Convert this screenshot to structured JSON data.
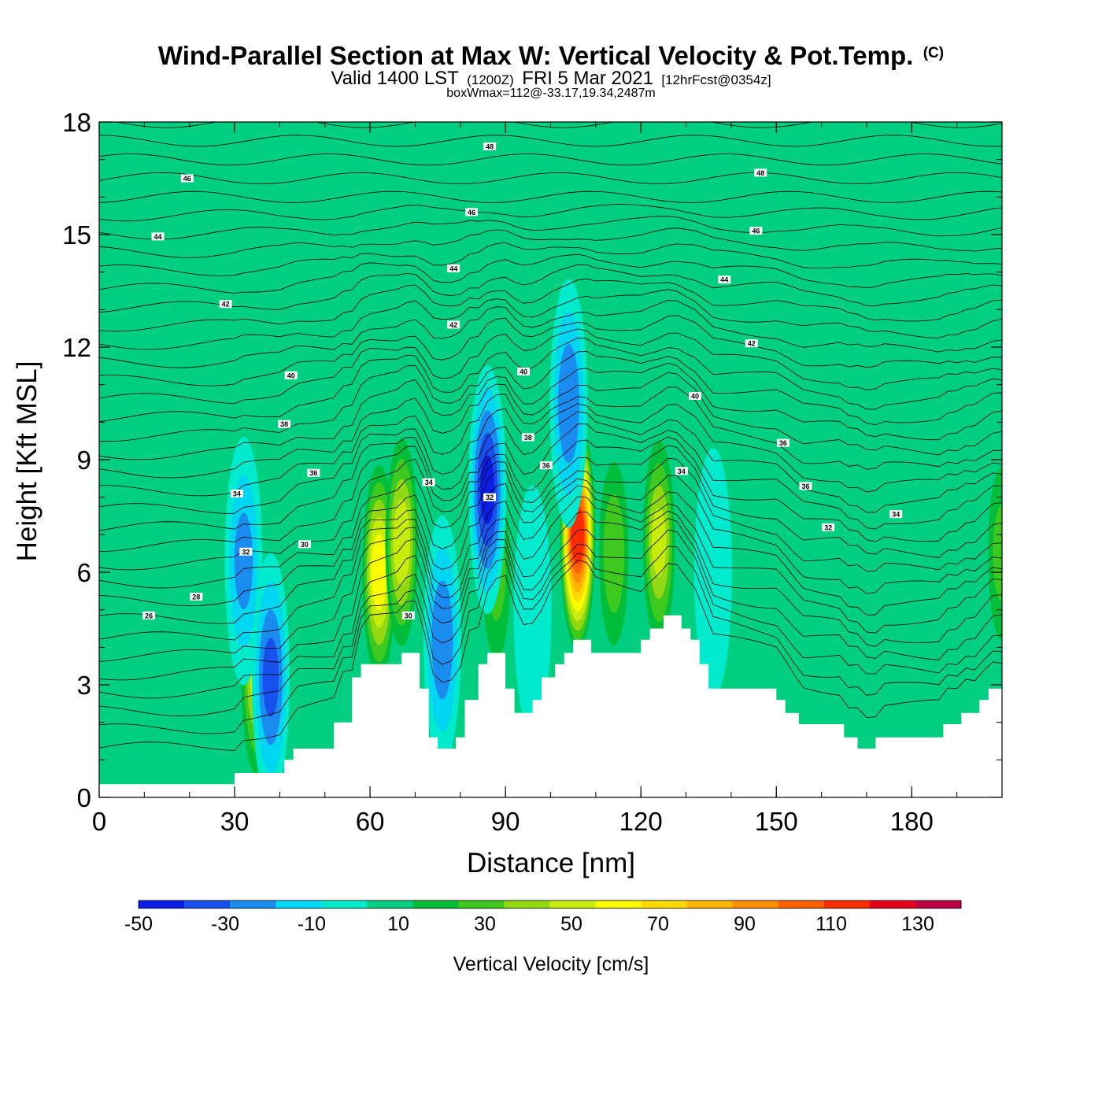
{
  "chart_data": {
    "type": "heatmap",
    "title": "Wind-Parallel Section at Max W: Vertical Velocity & Pot.Temp.",
    "title_mark": "(C)",
    "subtitle_parts": [
      "Valid 1400 LST",
      "(1200Z)",
      "FRI 5 Mar 2021",
      "[12hrFcst@0354z]"
    ],
    "subtitle2": "boxWmax=112@-33.17,19.34,2487m",
    "xlabel": "Distance [nm]",
    "ylabel": "Height [Kft MSL]",
    "xlim": [
      0,
      200
    ],
    "ylim": [
      0,
      18
    ],
    "x_ticks": [
      "0",
      "30",
      "60",
      "90",
      "120",
      "150",
      "180"
    ],
    "x_tick_values": [
      0,
      30,
      60,
      90,
      120,
      150,
      180
    ],
    "y_ticks": [
      "0",
      "3",
      "6",
      "9",
      "12",
      "15",
      "18"
    ],
    "y_tick_values": [
      0,
      3,
      6,
      9,
      12,
      15,
      18
    ],
    "colorbar": {
      "label": "Vertical Velocity [cm/s]",
      "min": -50,
      "max": 140,
      "step": 10,
      "tick_labels": [
        "-50",
        "-30",
        "-10",
        "10",
        "30",
        "50",
        "70",
        "90",
        "110",
        "130"
      ],
      "tick_values": [
        -50,
        -30,
        -10,
        10,
        30,
        50,
        70,
        90,
        110,
        130
      ],
      "colors": [
        "#0c1ee6",
        "#1750ec",
        "#1a8cf0",
        "#00d6f2",
        "#00eacd",
        "#00cf80",
        "#00bd3a",
        "#3ec91e",
        "#92d813",
        "#c8ec0a",
        "#fcfc00",
        "#fcd900",
        "#fcb500",
        "#fc8d00",
        "#fc6000",
        "#fc2a00",
        "#e6001b",
        "#bb0044"
      ]
    },
    "background_value": 8,
    "terrain_profile": [
      [
        0,
        0.35
      ],
      [
        30,
        0.35
      ],
      [
        30,
        0.65
      ],
      [
        41,
        0.65
      ],
      [
        41,
        1.0
      ],
      [
        43,
        1.0
      ],
      [
        43,
        1.3
      ],
      [
        52,
        1.3
      ],
      [
        52,
        2.0
      ],
      [
        56,
        2.0
      ],
      [
        56,
        3.2
      ],
      [
        58,
        3.2
      ],
      [
        58,
        3.55
      ],
      [
        67,
        3.55
      ],
      [
        67,
        3.85
      ],
      [
        71,
        3.85
      ],
      [
        71,
        2.9
      ],
      [
        73,
        2.9
      ],
      [
        73,
        1.6
      ],
      [
        75,
        1.6
      ],
      [
        75,
        1.3
      ],
      [
        79,
        1.3
      ],
      [
        79,
        1.6
      ],
      [
        81,
        1.6
      ],
      [
        81,
        2.6
      ],
      [
        84,
        2.6
      ],
      [
        84,
        3.55
      ],
      [
        86,
        3.55
      ],
      [
        86,
        3.85
      ],
      [
        90,
        3.85
      ],
      [
        90,
        2.9
      ],
      [
        92,
        2.9
      ],
      [
        92,
        2.25
      ],
      [
        96,
        2.25
      ],
      [
        96,
        2.6
      ],
      [
        98,
        2.6
      ],
      [
        98,
        3.2
      ],
      [
        101,
        3.2
      ],
      [
        101,
        3.55
      ],
      [
        103,
        3.55
      ],
      [
        103,
        3.85
      ],
      [
        105,
        3.85
      ],
      [
        105,
        4.2
      ],
      [
        109,
        4.2
      ],
      [
        109,
        3.85
      ],
      [
        120,
        3.85
      ],
      [
        120,
        4.2
      ],
      [
        122,
        4.2
      ],
      [
        122,
        4.5
      ],
      [
        125,
        4.5
      ],
      [
        125,
        4.85
      ],
      [
        129,
        4.85
      ],
      [
        129,
        4.5
      ],
      [
        131,
        4.5
      ],
      [
        131,
        4.2
      ],
      [
        133,
        4.2
      ],
      [
        133,
        3.55
      ],
      [
        135,
        3.55
      ],
      [
        135,
        2.9
      ],
      [
        150,
        2.9
      ],
      [
        150,
        2.6
      ],
      [
        152,
        2.6
      ],
      [
        152,
        2.25
      ],
      [
        155,
        2.25
      ],
      [
        155,
        1.95
      ],
      [
        165,
        1.95
      ],
      [
        165,
        1.6
      ],
      [
        168,
        1.6
      ],
      [
        168,
        1.3
      ],
      [
        172,
        1.3
      ],
      [
        172,
        1.6
      ],
      [
        187,
        1.6
      ],
      [
        187,
        1.95
      ],
      [
        191,
        1.95
      ],
      [
        191,
        2.25
      ],
      [
        195,
        2.25
      ],
      [
        195,
        2.6
      ],
      [
        197,
        2.6
      ],
      [
        197,
        2.9
      ],
      [
        200,
        2.9
      ]
    ],
    "updraft_cores": [
      {
        "x": 106,
        "z": 7.0,
        "peak": 112
      },
      {
        "x": 62,
        "z": 6.0,
        "peak": 60
      },
      {
        "x": 67,
        "z": 6.8,
        "peak": 50
      },
      {
        "x": 124,
        "z": 6.8,
        "peak": 45
      },
      {
        "x": 35,
        "z": 3.3,
        "peak": 45
      },
      {
        "x": 114,
        "z": 6.5,
        "peak": 30
      },
      {
        "x": 88,
        "z": 6.0,
        "peak": 25
      },
      {
        "x": 200,
        "z": 6.5,
        "peak": 25
      }
    ],
    "downdraft_cores": [
      {
        "x": 86,
        "z": 8.2,
        "peak": -45
      },
      {
        "x": 104,
        "z": 10.5,
        "peak": -30
      },
      {
        "x": 32,
        "z": 6.3,
        "peak": -25
      },
      {
        "x": 38,
        "z": 3.2,
        "peak": -35
      },
      {
        "x": 76,
        "z": 4.2,
        "peak": -30
      },
      {
        "x": 96,
        "z": 5.0,
        "peak": -12
      },
      {
        "x": 136,
        "z": 6.0,
        "peak": -12
      }
    ],
    "theta_contour_labels": [
      {
        "text": "26",
        "x": 11,
        "z": 4.85
      },
      {
        "text": "28",
        "x": 21.5,
        "z": 5.35
      },
      {
        "text": "32",
        "x": 32.5,
        "z": 6.55
      },
      {
        "text": "34",
        "x": 30.5,
        "z": 8.1
      },
      {
        "text": "30",
        "x": 45.5,
        "z": 6.75
      },
      {
        "text": "36",
        "x": 47.5,
        "z": 8.65
      },
      {
        "text": "38",
        "x": 41,
        "z": 9.95
      },
      {
        "text": "40",
        "x": 42.5,
        "z": 11.25
      },
      {
        "text": "42",
        "x": 28,
        "z": 13.15
      },
      {
        "text": "44",
        "x": 13,
        "z": 14.95
      },
      {
        "text": "46",
        "x": 19.5,
        "z": 16.5
      },
      {
        "text": "30",
        "x": 68.5,
        "z": 4.85
      },
      {
        "text": "34",
        "x": 73,
        "z": 8.4
      },
      {
        "text": "32",
        "x": 86.5,
        "z": 8.0
      },
      {
        "text": "38",
        "x": 95,
        "z": 9.6
      },
      {
        "text": "36",
        "x": 99,
        "z": 8.85
      },
      {
        "text": "40",
        "x": 94,
        "z": 11.35
      },
      {
        "text": "42",
        "x": 78.5,
        "z": 12.6
      },
      {
        "text": "44",
        "x": 78.5,
        "z": 14.1
      },
      {
        "text": "46",
        "x": 82.5,
        "z": 15.6
      },
      {
        "text": "48",
        "x": 86.5,
        "z": 17.35
      },
      {
        "text": "34",
        "x": 129,
        "z": 8.7
      },
      {
        "text": "40",
        "x": 132,
        "z": 10.7
      },
      {
        "text": "42",
        "x": 144.5,
        "z": 12.1
      },
      {
        "text": "44",
        "x": 138.5,
        "z": 13.8
      },
      {
        "text": "46",
        "x": 145.5,
        "z": 15.1
      },
      {
        "text": "48",
        "x": 146.5,
        "z": 16.65
      },
      {
        "text": "36",
        "x": 151.5,
        "z": 9.45
      },
      {
        "text": "36",
        "x": 156.5,
        "z": 8.3
      },
      {
        "text": "32",
        "x": 161.5,
        "z": 7.2
      },
      {
        "text": "34",
        "x": 176.5,
        "z": 7.55
      }
    ]
  }
}
